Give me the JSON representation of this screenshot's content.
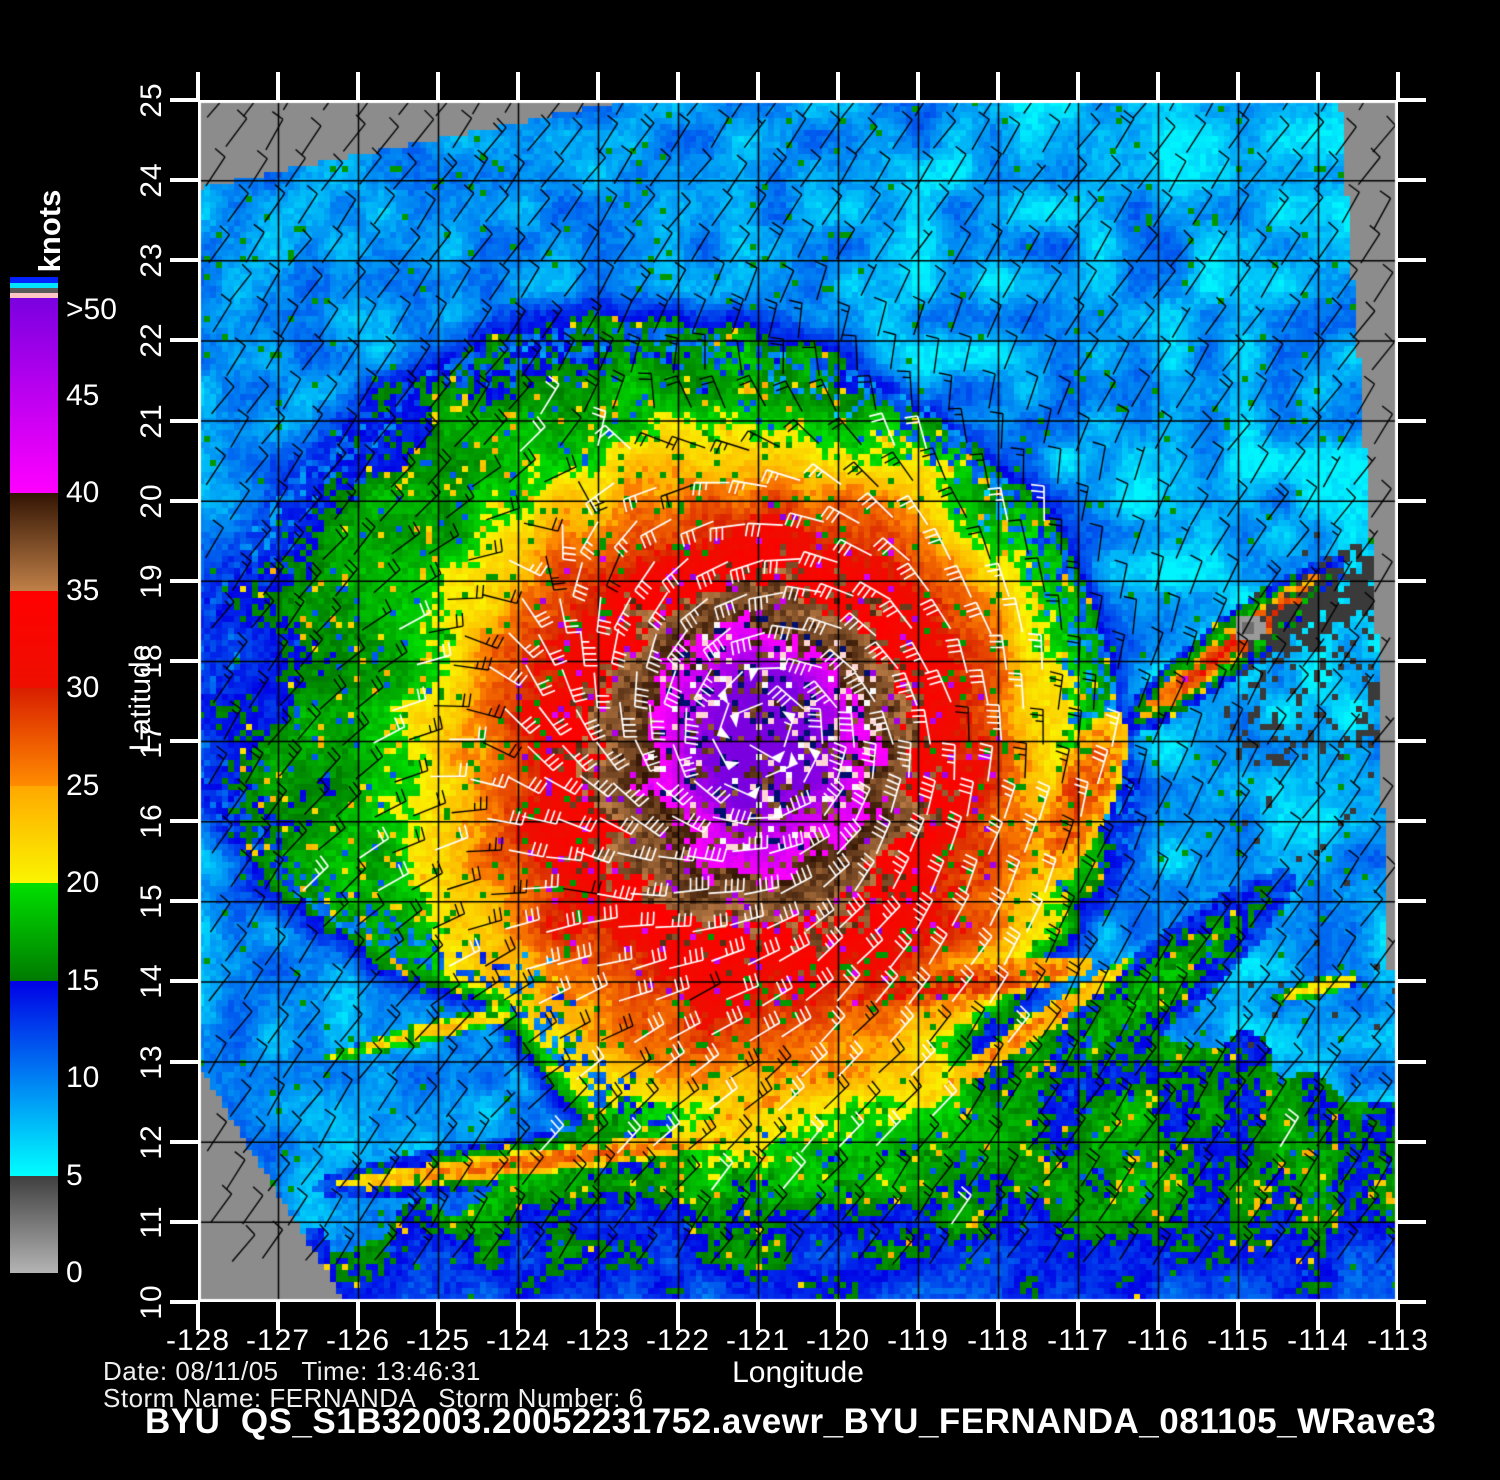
{
  "chart_data": {
    "type": "heatmap",
    "title": "BYU  QS_S1B32003.20052231752.avewr_BYU_FERNANDA_081105_WRave3",
    "xlabel": "Longitude",
    "ylabel": "Latitude",
    "xlim": [
      -128,
      -113
    ],
    "ylim": [
      10,
      25
    ],
    "grid": true,
    "x_ticks": [
      "-128",
      "-127",
      "-126",
      "-125",
      "-124",
      "-123",
      "-122",
      "-121",
      "-120",
      "-119",
      "-118",
      "-117",
      "-116",
      "-115",
      "-114",
      "-113"
    ],
    "y_ticks": [
      "10",
      "11",
      "12",
      "13",
      "14",
      "15",
      "16",
      "17",
      "18",
      "19",
      "20",
      "21",
      "22",
      "23",
      "24",
      "25"
    ],
    "colorbar": {
      "title": "knots",
      "tick_labels": [
        ">50",
        "45",
        "40",
        "35",
        "30",
        "25",
        "20",
        "15",
        "10",
        "5",
        "0"
      ],
      "tick_values": [
        50,
        45,
        40,
        35,
        30,
        25,
        20,
        15,
        10,
        5,
        0
      ],
      "segments": [
        {
          "from": 0,
          "to": 5,
          "bottom": "#b4b4b4",
          "top": "#3f3f3f"
        },
        {
          "from": 5,
          "to": 15,
          "bottom": "#00ffff",
          "top": "#0000e6"
        },
        {
          "from": 15,
          "to": 20,
          "bottom": "#007a00",
          "top": "#00e000"
        },
        {
          "from": 20,
          "to": 25,
          "bottom": "#faf500",
          "top": "#ffa800"
        },
        {
          "from": 25,
          "to": 30,
          "bottom": "#ff8c00",
          "top": "#d81e00"
        },
        {
          "from": 30,
          "to": 35,
          "bottom": "#ee0f00",
          "top": "#ff0000"
        },
        {
          "from": 35,
          "to": 40,
          "bottom": "#c08048",
          "top": "#321403"
        },
        {
          "from": 40,
          "to": 50,
          "bottom": "#ff00ff",
          "top": "#7a00e0"
        }
      ],
      "flag_stripes_top_to_bottom": [
        "#0022ff",
        "#00e4ff",
        "#5a5a5a",
        "#ffc4c4"
      ]
    },
    "storm": {
      "name": "FERNANDA",
      "number": "6",
      "date": "08/11/05",
      "time": "13:46:31",
      "center_lon": -120.9,
      "center_lat": 17.1
    }
  },
  "footer": {
    "line1": "Date: 08/11/05   Time: 13:46:31",
    "line2": "Storm Name: FERNANDA   Storm Number: 6"
  }
}
